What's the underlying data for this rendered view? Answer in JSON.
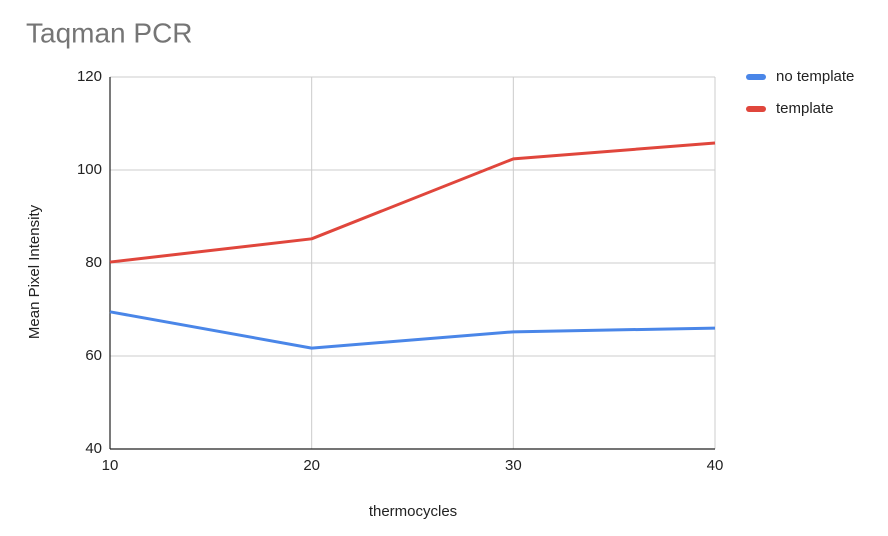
{
  "chart_data": {
    "type": "line",
    "title": "Taqman PCR",
    "x_label": "thermocycles",
    "y_label": "Mean Pixel Intensity",
    "x": [
      10,
      20,
      30,
      40
    ],
    "series": [
      {
        "name": "no template",
        "color": "#4a86e8",
        "values": [
          69.5,
          61.7,
          65.2,
          66
        ]
      },
      {
        "name": "template",
        "color": "#e0463c",
        "values": [
          80.2,
          85.2,
          102.4,
          105.8
        ]
      }
    ],
    "xlim": [
      10,
      40
    ],
    "xticks": [
      10,
      20,
      30,
      40
    ],
    "ylim": [
      40,
      120
    ],
    "yticks": [
      40,
      60,
      80,
      100,
      120
    ],
    "grid": true,
    "legend": "right"
  }
}
